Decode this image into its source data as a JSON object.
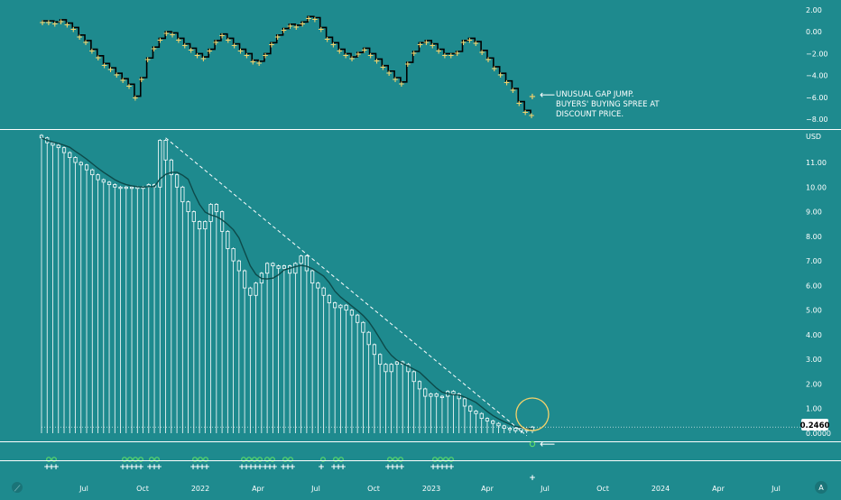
{
  "colors": {
    "background": "#1e8a8e",
    "candle_body": "#1e8a8e",
    "candle_outline": "#ffffff",
    "moving_average": "#0d4a4a",
    "trendline": "#ffffff",
    "oscillator_line": "#000000",
    "oscillator_marker": "#f5d26b",
    "circle_highlight": "#f5d26b",
    "signal_green": "#5edc6a",
    "signal_white": "#ffffff",
    "text": "#ffffff",
    "price_label_bg": "#ffffff",
    "price_label_text": "#000000"
  },
  "annotation": {
    "line1": "UNUSUAL GAP JUMP.",
    "line2": "BUYERS' BUYING SPREE AT",
    "line3": "DISCOUNT PRICE."
  },
  "chart_data": [
    {
      "type": "line",
      "ylim": [
        -8.5,
        2.5
      ],
      "y_ticks": [
        "2.00",
        "0.00",
        "−2.00",
        "−4.00",
        "−6.00",
        "−8.00"
      ],
      "y_tick_values": [
        2,
        0,
        -2,
        -4,
        -6,
        -8
      ],
      "values": [
        1.0,
        1.0,
        0.9,
        1.1,
        0.8,
        0.4,
        -0.3,
        -0.8,
        -1.6,
        -2.2,
        -2.9,
        -3.3,
        -3.8,
        -4.3,
        -4.8,
        -5.9,
        -4.2,
        -2.4,
        -1.4,
        -0.6,
        0.0,
        -0.1,
        -0.6,
        -1.1,
        -1.5,
        -2.0,
        -2.3,
        -1.6,
        -0.8,
        -0.2,
        -0.6,
        -1.1,
        -1.6,
        -2.0,
        -2.6,
        -2.7,
        -2.0,
        -1.0,
        -0.3,
        0.3,
        0.7,
        0.6,
        0.9,
        1.4,
        1.3,
        0.4,
        -0.5,
        -1.0,
        -1.6,
        -2.0,
        -2.3,
        -1.9,
        -1.5,
        -2.0,
        -2.5,
        -3.1,
        -3.6,
        -4.2,
        -4.6,
        -2.8,
        -1.8,
        -1.0,
        -0.8,
        -1.1,
        -1.6,
        -2.0,
        -2.0,
        -1.8,
        -0.8,
        -0.6,
        -0.9,
        -1.7,
        -2.4,
        -3.2,
        -3.8,
        -4.5,
        -5.2,
        -6.4,
        -7.2,
        -7.5
      ],
      "x_ticks": [
        "Jul",
        "Oct",
        "2022",
        "Apr",
        "Jul",
        "Oct",
        "2023",
        "Apr",
        "Jul",
        "Oct",
        "2024",
        "Apr",
        "Jul"
      ]
    },
    {
      "type": "candlestick",
      "currency": "USD",
      "y_ticks": [
        "11.00",
        "10.00",
        "9.00",
        "8.00",
        "7.00",
        "6.00",
        "5.00",
        "4.00",
        "3.00",
        "2.00",
        "1.00",
        "0.0000"
      ],
      "last_price": "0.2460",
      "closes": [
        12.0,
        11.8,
        11.7,
        11.6,
        11.4,
        11.2,
        11.0,
        10.9,
        10.7,
        10.5,
        10.3,
        10.2,
        10.1,
        10.0,
        10.0,
        10.0,
        10.0,
        10.0,
        10.0,
        10.1,
        10.0,
        11.9,
        11.1,
        10.5,
        10.0,
        9.4,
        9.0,
        8.6,
        8.3,
        8.6,
        9.3,
        9.0,
        8.2,
        7.5,
        7.0,
        6.6,
        5.9,
        5.6,
        6.1,
        6.5,
        6.9,
        6.8,
        6.7,
        6.8,
        6.5,
        6.9,
        7.2,
        6.6,
        6.1,
        5.9,
        5.6,
        5.3,
        5.1,
        5.2,
        5.0,
        4.8,
        4.5,
        4.1,
        3.6,
        3.2,
        2.8,
        2.5,
        2.8,
        2.9,
        2.8,
        2.5,
        2.1,
        1.8,
        1.5,
        1.6,
        1.5,
        1.5,
        1.7,
        1.6,
        1.4,
        1.1,
        0.9,
        0.8,
        0.6,
        0.5,
        0.4,
        0.3,
        0.2,
        0.2,
        0.1,
        0.2,
        0.1,
        0.25
      ],
      "trendline": {
        "start": [
          22,
          12.0
        ],
        "end": [
          86,
          -0.1
        ]
      }
    }
  ]
}
